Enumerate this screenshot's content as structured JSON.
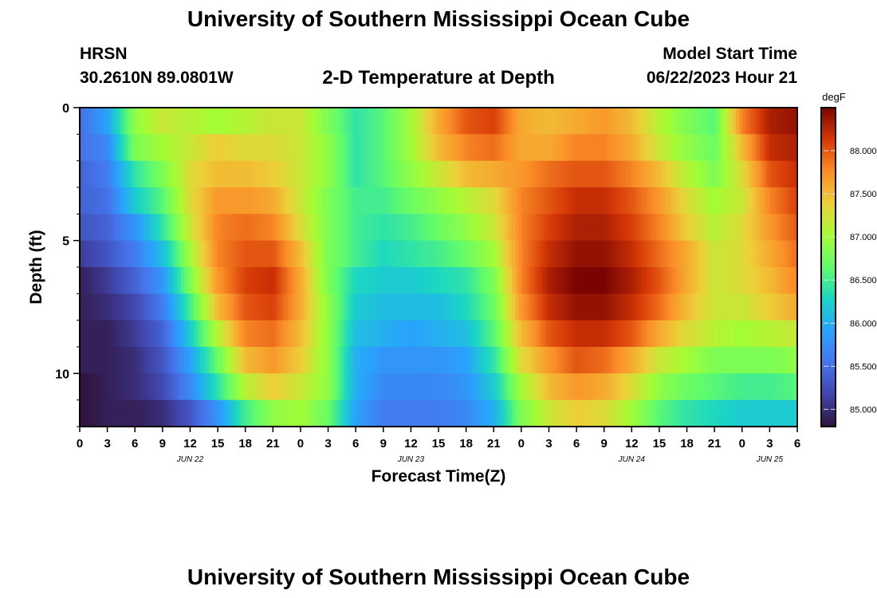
{
  "header": {
    "title": "University of Southern Mississippi Ocean Cube",
    "station": "HRSN",
    "coordinates": "30.2610N  89.0801W",
    "plot_title": "2-D Temperature at Depth",
    "start_label": "Model Start Time",
    "start_time": "06/22/2023 Hour 21"
  },
  "footer": {
    "title": "University of Southern Mississippi Ocean Cube"
  },
  "chart_data": {
    "type": "heatmap",
    "title": "2-D Temperature at Depth",
    "xlabel": "Forecast Time(Z)",
    "ylabel": "Depth (ft)",
    "colorbar_label": "degF",
    "xlim": [
      0,
      78
    ],
    "ylim": [
      0,
      12
    ],
    "y_inverted": true,
    "x_ticks": [
      0,
      3,
      6,
      9,
      12,
      15,
      18,
      21,
      24,
      27,
      30,
      33,
      36,
      39,
      42,
      45,
      48,
      51,
      54,
      57,
      60,
      63,
      66,
      69,
      72,
      75,
      78
    ],
    "x_tick_labels": [
      "0",
      "3",
      "6",
      "9",
      "12",
      "15",
      "18",
      "21",
      "0",
      "3",
      "6",
      "9",
      "12",
      "15",
      "18",
      "21",
      "0",
      "3",
      "6",
      "9",
      "12",
      "15",
      "18",
      "21",
      "0",
      "3",
      "6"
    ],
    "day_labels": [
      {
        "at": 12,
        "label": "JUN 22"
      },
      {
        "at": 36,
        "label": "JUN 23"
      },
      {
        "at": 60,
        "label": "JUN 24"
      },
      {
        "at": 75,
        "label": "JUN 25"
      }
    ],
    "y_ticks": [
      0,
      5,
      10
    ],
    "y_tick_labels": [
      "0",
      "5",
      "10"
    ],
    "colorbar_range": [
      84.8,
      88.5
    ],
    "colorbar_ticks": [
      85.0,
      85.5,
      86.0,
      86.5,
      87.0,
      87.5,
      88.0
    ],
    "colorbar_tick_labels": [
      "85.000",
      "85.500",
      "86.000",
      "86.500",
      "87.000",
      "87.500",
      "88.000"
    ],
    "depths": [
      0.5,
      1.5,
      2.5,
      3.5,
      4.5,
      5.5,
      6.5,
      7.5,
      8.5,
      9.5,
      10.5,
      11.5
    ],
    "hours": [
      0,
      3,
      6,
      9,
      12,
      15,
      18,
      21,
      24,
      27,
      30,
      33,
      36,
      39,
      42,
      45,
      48,
      51,
      54,
      57,
      60,
      63,
      66,
      69,
      72,
      75,
      78
    ],
    "values": [
      [
        85.5,
        85.9,
        86.9,
        87.2,
        87.1,
        87.0,
        87.1,
        87.2,
        87.2,
        86.8,
        86.4,
        86.6,
        87.0,
        87.6,
        88.0,
        88.1,
        87.6,
        87.5,
        87.6,
        87.7,
        87.5,
        87.1,
        86.8,
        86.6,
        87.8,
        88.3,
        88.4
      ],
      [
        85.5,
        85.7,
        86.8,
        87.0,
        87.2,
        87.4,
        87.3,
        87.3,
        87.2,
        86.9,
        86.4,
        86.6,
        87.0,
        87.5,
        87.8,
        87.9,
        87.6,
        87.6,
        87.8,
        87.8,
        87.6,
        87.2,
        86.9,
        86.7,
        87.5,
        88.2,
        88.3
      ],
      [
        85.4,
        85.6,
        86.4,
        86.8,
        87.3,
        87.5,
        87.5,
        87.4,
        87.2,
        86.9,
        86.4,
        86.6,
        86.9,
        87.2,
        87.5,
        87.6,
        87.7,
        87.9,
        88.0,
        88.0,
        87.8,
        87.5,
        87.1,
        86.8,
        87.3,
        88.0,
        88.2
      ],
      [
        85.4,
        85.5,
        86.2,
        86.6,
        87.3,
        87.7,
        87.7,
        87.6,
        87.2,
        86.8,
        86.5,
        86.5,
        86.7,
        86.9,
        87.1,
        87.3,
        87.8,
        88.0,
        88.2,
        88.2,
        88.0,
        87.7,
        87.3,
        87.0,
        87.2,
        87.8,
        88.1
      ],
      [
        85.3,
        85.4,
        85.8,
        86.4,
        87.2,
        87.8,
        87.9,
        87.8,
        87.3,
        86.8,
        86.5,
        86.4,
        86.5,
        86.7,
        86.9,
        87.2,
        87.8,
        88.1,
        88.3,
        88.3,
        88.1,
        87.8,
        87.4,
        87.1,
        87.3,
        87.7,
        88.0
      ],
      [
        85.1,
        85.3,
        85.6,
        86.1,
        87.0,
        87.8,
        88.0,
        88.0,
        87.5,
        86.8,
        86.5,
        86.3,
        86.4,
        86.5,
        86.7,
        87.0,
        87.8,
        88.2,
        88.4,
        88.4,
        88.2,
        87.9,
        87.6,
        87.2,
        87.3,
        87.6,
        87.9
      ],
      [
        84.9,
        85.1,
        85.4,
        85.8,
        86.8,
        87.7,
        88.1,
        88.2,
        87.6,
        86.8,
        86.3,
        86.2,
        86.2,
        86.3,
        86.4,
        86.8,
        87.8,
        88.3,
        88.5,
        88.5,
        88.3,
        88.0,
        87.6,
        87.2,
        87.3,
        87.5,
        87.8
      ],
      [
        84.9,
        85.0,
        85.2,
        85.6,
        86.5,
        87.5,
        88.0,
        88.1,
        87.6,
        86.9,
        86.2,
        86.1,
        86.1,
        86.1,
        86.3,
        86.7,
        87.7,
        88.2,
        88.4,
        88.4,
        88.2,
        87.9,
        87.5,
        87.2,
        87.2,
        87.4,
        87.6
      ],
      [
        84.9,
        84.9,
        85.1,
        85.4,
        86.2,
        87.1,
        87.8,
        87.9,
        87.5,
        86.9,
        86.1,
        86.0,
        85.9,
        86.0,
        86.1,
        86.6,
        87.5,
        88.0,
        88.2,
        88.2,
        88.0,
        87.6,
        87.3,
        87.1,
        87.0,
        87.1,
        87.2
      ],
      [
        84.9,
        84.9,
        85.0,
        85.3,
        85.9,
        86.7,
        87.5,
        87.7,
        87.4,
        86.9,
        86.0,
        85.8,
        85.8,
        85.8,
        85.9,
        86.4,
        87.3,
        87.7,
        88.0,
        87.9,
        87.6,
        87.2,
        87.0,
        86.8,
        86.8,
        86.8,
        86.9
      ],
      [
        84.8,
        84.9,
        85.0,
        85.2,
        85.7,
        86.4,
        87.1,
        87.4,
        87.2,
        86.9,
        86.0,
        85.7,
        85.7,
        85.7,
        85.8,
        86.2,
        87.0,
        87.5,
        87.7,
        87.6,
        87.3,
        86.9,
        86.7,
        86.6,
        86.5,
        86.5,
        86.6
      ],
      [
        84.8,
        84.9,
        84.9,
        85.0,
        85.3,
        85.8,
        86.5,
        86.9,
        87.0,
        86.7,
        85.9,
        85.6,
        85.6,
        85.6,
        85.7,
        86.0,
        86.8,
        87.2,
        87.4,
        87.3,
        87.0,
        86.6,
        86.4,
        86.3,
        86.2,
        86.2,
        86.2
      ]
    ]
  }
}
